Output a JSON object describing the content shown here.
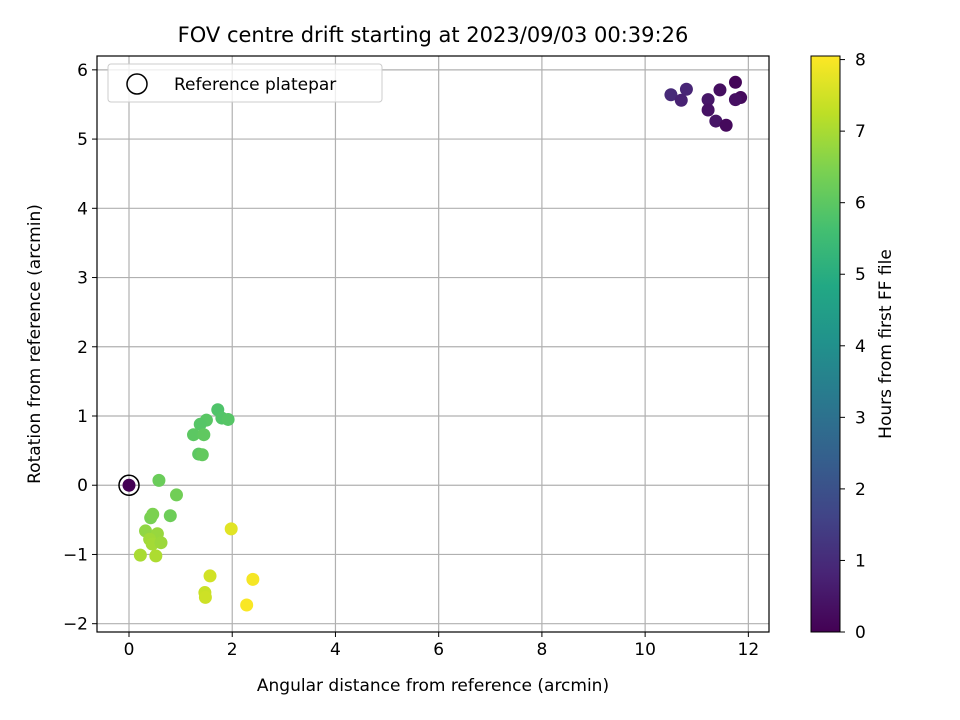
{
  "chart_data": {
    "type": "scatter",
    "title": "FOV centre drift starting at 2023/09/03 00:39:26",
    "xlabel": "Angular distance from reference (arcmin)",
    "ylabel": "Rotation from reference (arcmin)",
    "xlim": [
      -0.62,
      12.4
    ],
    "ylim": [
      -2.12,
      6.2
    ],
    "x_ticks": [
      0,
      2,
      4,
      6,
      8,
      10,
      12
    ],
    "y_ticks": [
      -2,
      -1,
      0,
      1,
      2,
      3,
      4,
      5,
      6
    ],
    "grid": true,
    "legend": {
      "position": "top-left",
      "entries": [
        "Reference platepar"
      ]
    },
    "colorbar": {
      "label": "Hours from first FF file",
      "min": 0,
      "max": 8.05,
      "ticks": [
        0,
        1,
        2,
        3,
        4,
        5,
        6,
        7,
        8
      ],
      "colormap": "viridis"
    },
    "reference_point": {
      "x": 0,
      "y": 0
    },
    "points": [
      {
        "x": 0.0,
        "y": 0.0,
        "c": 0.0
      },
      {
        "x": 11.75,
        "y": 5.82,
        "c": 0.1
      },
      {
        "x": 11.45,
        "y": 5.71,
        "c": 0.3
      },
      {
        "x": 11.85,
        "y": 5.6,
        "c": 0.2
      },
      {
        "x": 11.75,
        "y": 5.57,
        "c": 0.35
      },
      {
        "x": 11.22,
        "y": 5.57,
        "c": 0.5
      },
      {
        "x": 11.22,
        "y": 5.42,
        "c": 0.4
      },
      {
        "x": 11.37,
        "y": 5.26,
        "c": 0.45
      },
      {
        "x": 11.57,
        "y": 5.2,
        "c": 0.2
      },
      {
        "x": 10.8,
        "y": 5.72,
        "c": 0.85
      },
      {
        "x": 10.5,
        "y": 5.64,
        "c": 0.95
      },
      {
        "x": 10.7,
        "y": 5.56,
        "c": 0.75
      },
      {
        "x": 1.72,
        "y": 1.09,
        "c": 5.8
      },
      {
        "x": 1.8,
        "y": 0.97,
        "c": 5.85
      },
      {
        "x": 1.92,
        "y": 0.95,
        "c": 5.9
      },
      {
        "x": 1.5,
        "y": 0.94,
        "c": 5.95
      },
      {
        "x": 1.38,
        "y": 0.88,
        "c": 5.9
      },
      {
        "x": 1.25,
        "y": 0.73,
        "c": 6.0
      },
      {
        "x": 1.45,
        "y": 0.73,
        "c": 6.05
      },
      {
        "x": 1.35,
        "y": 0.45,
        "c": 6.0
      },
      {
        "x": 1.42,
        "y": 0.44,
        "c": 6.1
      },
      {
        "x": 0.58,
        "y": 0.07,
        "c": 6.2
      },
      {
        "x": 0.92,
        "y": -0.14,
        "c": 6.3
      },
      {
        "x": 0.8,
        "y": -0.44,
        "c": 6.25
      },
      {
        "x": 0.42,
        "y": -0.47,
        "c": 6.4
      },
      {
        "x": 0.46,
        "y": -0.42,
        "c": 6.45
      },
      {
        "x": 0.32,
        "y": -0.66,
        "c": 6.7
      },
      {
        "x": 0.55,
        "y": -0.7,
        "c": 6.8
      },
      {
        "x": 0.4,
        "y": -0.78,
        "c": 6.9
      },
      {
        "x": 0.45,
        "y": -0.85,
        "c": 6.95
      },
      {
        "x": 0.62,
        "y": -0.83,
        "c": 6.85
      },
      {
        "x": 0.22,
        "y": -1.01,
        "c": 7.0
      },
      {
        "x": 0.52,
        "y": -1.02,
        "c": 7.05
      },
      {
        "x": 1.98,
        "y": -0.63,
        "c": 7.7
      },
      {
        "x": 1.57,
        "y": -1.31,
        "c": 7.5
      },
      {
        "x": 1.47,
        "y": -1.55,
        "c": 7.4
      },
      {
        "x": 1.48,
        "y": -1.62,
        "c": 7.45
      },
      {
        "x": 2.4,
        "y": -1.36,
        "c": 7.95
      },
      {
        "x": 2.28,
        "y": -1.73,
        "c": 8.0
      }
    ]
  }
}
